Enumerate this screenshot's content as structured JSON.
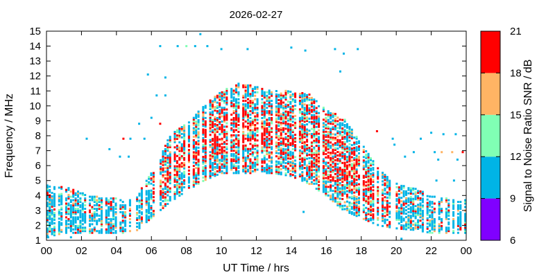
{
  "chart_data": {
    "type": "scatter",
    "title": "2026-02-27",
    "xlabel": "UT Time / hrs",
    "ylabel": "Frequency / MHz",
    "xlim": [
      0,
      24
    ],
    "ylim": [
      1,
      15
    ],
    "x_ticks": [
      "00",
      "02",
      "04",
      "06",
      "08",
      "10",
      "12",
      "14",
      "16",
      "18",
      "20",
      "22",
      "00"
    ],
    "y_ticks": [
      "1",
      "2",
      "3",
      "4",
      "5",
      "6",
      "7",
      "8",
      "9",
      "10",
      "11",
      "12",
      "13",
      "14",
      "15"
    ],
    "grid": false,
    "colorbar": {
      "label": "Signal to Noise Ratio SNR / dB",
      "range": [
        6,
        21
      ],
      "ticks": [
        "6",
        "9",
        "12",
        "15",
        "18",
        "21"
      ],
      "bands": [
        {
          "from": 6,
          "to": 9,
          "color": "#8000ff"
        },
        {
          "from": 9,
          "to": 12,
          "color": "#00b4e6"
        },
        {
          "from": 12,
          "to": 15,
          "color": "#80ffb4"
        },
        {
          "from": 15,
          "to": 18,
          "color": "#ffb464"
        },
        {
          "from": 18,
          "to": 21,
          "color": "#ff0000"
        }
      ]
    },
    "series_envelope": {
      "description_hours": [
        0,
        1,
        2,
        3,
        4,
        5,
        5.5,
        6,
        6.5,
        7,
        8,
        9,
        10,
        11,
        12,
        13,
        14,
        15,
        16,
        17,
        18,
        19,
        20,
        21,
        22,
        23,
        24
      ],
      "lower_mhz": [
        1.2,
        1.5,
        1.5,
        1.5,
        1.5,
        1.5,
        2.0,
        2.5,
        3.0,
        3.5,
        4.3,
        5.0,
        5.5,
        5.5,
        5.5,
        5.5,
        5.3,
        4.8,
        4.0,
        3.0,
        2.5,
        2.0,
        1.8,
        1.7,
        1.5,
        1.5,
        1.5
      ],
      "upper_mhz": [
        4.7,
        4.6,
        4.2,
        3.9,
        3.8,
        3.8,
        4.6,
        5.5,
        6.5,
        8.0,
        8.8,
        10.0,
        11.0,
        11.5,
        11.3,
        11.0,
        11.0,
        10.8,
        9.8,
        9.2,
        7.5,
        5.8,
        4.8,
        4.5,
        4.0,
        3.8,
        3.8
      ]
    },
    "scatter_points": [
      {
        "x": 6.5,
        "y": 14.0,
        "snr": 10
      },
      {
        "x": 7.5,
        "y": 14.0,
        "snr": 10
      },
      {
        "x": 8.0,
        "y": 14.0,
        "snr": 13
      },
      {
        "x": 8.5,
        "y": 14.0,
        "snr": 10
      },
      {
        "x": 8.8,
        "y": 14.8,
        "snr": 10
      },
      {
        "x": 9.2,
        "y": 14.0,
        "snr": 10
      },
      {
        "x": 10.0,
        "y": 13.8,
        "snr": 10
      },
      {
        "x": 11.5,
        "y": 13.8,
        "snr": 10
      },
      {
        "x": 14.0,
        "y": 13.9,
        "snr": 10
      },
      {
        "x": 14.8,
        "y": 13.7,
        "snr": 10
      },
      {
        "x": 16.5,
        "y": 13.8,
        "snr": 10
      },
      {
        "x": 17.0,
        "y": 13.5,
        "snr": 10
      },
      {
        "x": 17.8,
        "y": 13.8,
        "snr": 10
      },
      {
        "x": 16.8,
        "y": 12.3,
        "snr": 10
      },
      {
        "x": 5.8,
        "y": 12.1,
        "snr": 10
      },
      {
        "x": 6.8,
        "y": 11.9,
        "snr": 10
      },
      {
        "x": 6.3,
        "y": 10.7,
        "snr": 10
      },
      {
        "x": 6.8,
        "y": 10.7,
        "snr": 10
      },
      {
        "x": 6.0,
        "y": 9.2,
        "snr": 10
      },
      {
        "x": 5.3,
        "y": 8.8,
        "snr": 10
      },
      {
        "x": 6.5,
        "y": 8.8,
        "snr": 19
      },
      {
        "x": 4.4,
        "y": 7.8,
        "snr": 19
      },
      {
        "x": 4.8,
        "y": 7.8,
        "snr": 10
      },
      {
        "x": 5.6,
        "y": 7.8,
        "snr": 10
      },
      {
        "x": 4.2,
        "y": 6.6,
        "snr": 10
      },
      {
        "x": 4.7,
        "y": 6.6,
        "snr": 10
      },
      {
        "x": 2.3,
        "y": 7.8,
        "snr": 10
      },
      {
        "x": 3.6,
        "y": 7.1,
        "snr": 10
      },
      {
        "x": 18.9,
        "y": 8.3,
        "snr": 19
      },
      {
        "x": 19.8,
        "y": 7.8,
        "snr": 10
      },
      {
        "x": 19.9,
        "y": 7.4,
        "snr": 10
      },
      {
        "x": 21.4,
        "y": 7.8,
        "snr": 10
      },
      {
        "x": 20.5,
        "y": 6.6,
        "snr": 10
      },
      {
        "x": 21.0,
        "y": 6.9,
        "snr": 10
      },
      {
        "x": 22.0,
        "y": 8.2,
        "snr": 10
      },
      {
        "x": 22.7,
        "y": 8.1,
        "snr": 10
      },
      {
        "x": 23.4,
        "y": 8.1,
        "snr": 10
      },
      {
        "x": 22.2,
        "y": 6.9,
        "snr": 10
      },
      {
        "x": 22.6,
        "y": 6.9,
        "snr": 16
      },
      {
        "x": 23.2,
        "y": 6.9,
        "snr": 16
      },
      {
        "x": 23.8,
        "y": 6.9,
        "snr": 19
      },
      {
        "x": 22.4,
        "y": 6.4,
        "snr": 10
      },
      {
        "x": 23.5,
        "y": 6.4,
        "snr": 10
      },
      {
        "x": 22.3,
        "y": 5.0,
        "snr": 10
      },
      {
        "x": 23.3,
        "y": 5.0,
        "snr": 10
      },
      {
        "x": 14.7,
        "y": 2.9,
        "snr": 10
      },
      {
        "x": 20.3,
        "y": 1.1,
        "snr": 10
      },
      {
        "x": 1.4,
        "y": 1.2,
        "snr": 10
      },
      {
        "x": 0.1,
        "y": 1.2,
        "snr": 10
      }
    ]
  }
}
